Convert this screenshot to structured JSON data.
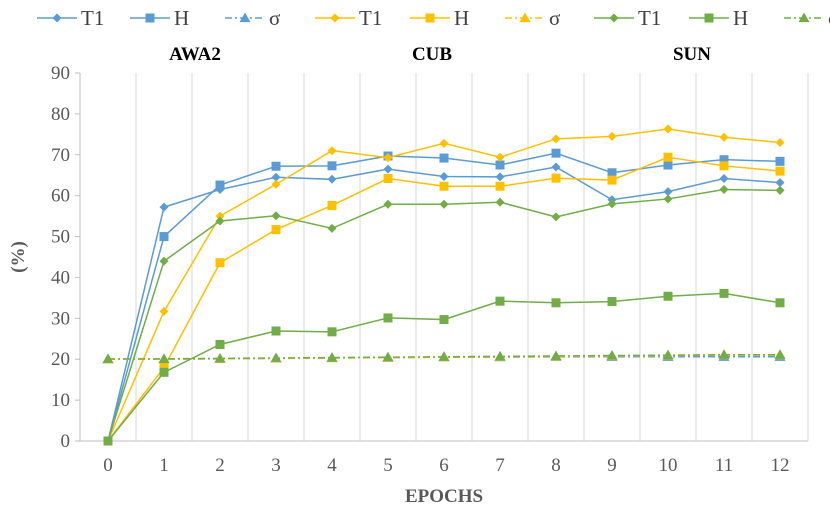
{
  "chart_data": {
    "type": "line",
    "xlabel": "EPOCHS",
    "ylabel": "(%)",
    "x": [
      0,
      1,
      2,
      3,
      4,
      5,
      6,
      7,
      8,
      9,
      10,
      11,
      12
    ],
    "ylim": [
      0,
      90
    ],
    "yticks": [
      0,
      10,
      20,
      30,
      40,
      50,
      60,
      70,
      80,
      90
    ],
    "grid": "vertical",
    "legend_position": "top",
    "groups": [
      {
        "name": "AWA2",
        "color": "#5B9BD5"
      },
      {
        "name": "CUB",
        "color": "#FFC000"
      },
      {
        "name": "SUN",
        "color": "#70AD47"
      }
    ],
    "series": [
      {
        "group": "AWA2",
        "name": "T1",
        "marker": "diamond",
        "dash": "solid",
        "color": "#5B9BD5",
        "values": [
          0,
          57.2,
          61.5,
          64.5,
          64.0,
          66.5,
          64.7,
          64.6,
          67.0,
          59.0,
          61.0,
          64.2,
          63.2
        ]
      },
      {
        "group": "AWA2",
        "name": "H",
        "marker": "square",
        "dash": "solid",
        "color": "#5B9BD5",
        "values": [
          0,
          50.0,
          62.6,
          67.2,
          67.3,
          69.7,
          69.2,
          67.5,
          70.4,
          65.6,
          67.5,
          68.8,
          68.4
        ]
      },
      {
        "group": "AWA2",
        "name": "σ",
        "marker": "triangle",
        "dash": "dashdot",
        "color": "#5B9BD5",
        "values": [
          20.0,
          20.0,
          20.1,
          20.2,
          20.3,
          20.4,
          20.5,
          20.5,
          20.6,
          20.6,
          20.6,
          20.6,
          20.6
        ]
      },
      {
        "group": "CUB",
        "name": "T1",
        "marker": "diamond",
        "dash": "solid",
        "color": "#FFC000",
        "values": [
          0,
          31.7,
          55.0,
          62.8,
          71.0,
          69.3,
          72.8,
          69.4,
          73.9,
          74.5,
          76.3,
          74.3,
          73.0
        ]
      },
      {
        "group": "CUB",
        "name": "H",
        "marker": "square",
        "dash": "solid",
        "color": "#FFC000",
        "values": [
          0,
          18.0,
          43.6,
          51.7,
          57.6,
          64.2,
          62.3,
          62.3,
          64.3,
          63.8,
          69.4,
          67.3,
          66.0
        ]
      },
      {
        "group": "CUB",
        "name": "σ",
        "marker": "triangle",
        "dash": "dashdot",
        "color": "#FFC000",
        "values": [
          20.0,
          20.0,
          20.1,
          20.2,
          20.3,
          20.4,
          20.5,
          20.6,
          20.7,
          20.8,
          20.9,
          21.0,
          21.0
        ]
      },
      {
        "group": "SUN",
        "name": "T1",
        "marker": "diamond",
        "dash": "solid",
        "color": "#70AD47",
        "values": [
          0,
          44.0,
          53.8,
          55.1,
          52.0,
          57.9,
          57.9,
          58.4,
          54.8,
          58.0,
          59.2,
          61.5,
          61.3
        ]
      },
      {
        "group": "SUN",
        "name": "H",
        "marker": "square",
        "dash": "solid",
        "color": "#70AD47",
        "values": [
          0,
          16.8,
          23.6,
          26.9,
          26.7,
          30.1,
          29.7,
          34.2,
          33.8,
          34.1,
          35.4,
          36.1,
          33.8
        ]
      },
      {
        "group": "SUN",
        "name": "σ",
        "marker": "triangle",
        "dash": "dashdot",
        "color": "#70AD47",
        "values": [
          20.1,
          20.1,
          20.2,
          20.3,
          20.4,
          20.5,
          20.6,
          20.7,
          20.8,
          20.9,
          21.0,
          21.1,
          21.1
        ]
      }
    ]
  }
}
